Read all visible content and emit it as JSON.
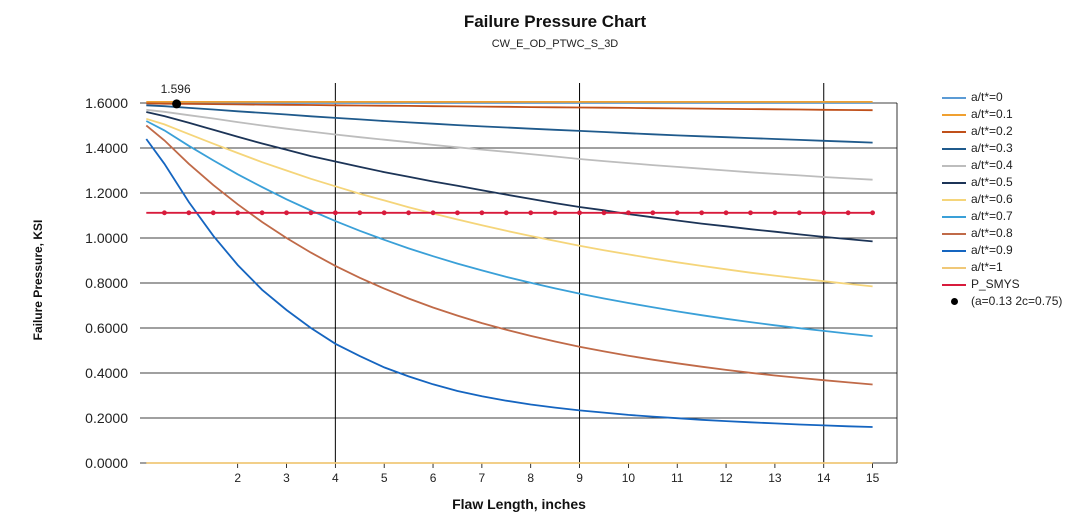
{
  "chart_data": {
    "type": "line",
    "title": "Failure Pressure Chart",
    "subtitle": "CW_E_OD_PTWC_S_3D",
    "xlabel": "Flaw Length, inches",
    "ylabel": "Failure Pressure, KSI",
    "xlim": [
      0,
      15.5
    ],
    "ylim": [
      0,
      1.6
    ],
    "x_ticks": [
      2,
      3,
      4,
      5,
      6,
      7,
      8,
      9,
      10,
      11,
      12,
      13,
      14,
      15
    ],
    "x_tick_labels": [
      "2",
      "3",
      "4",
      "5",
      "6",
      "7",
      "8",
      "9",
      "10",
      "11",
      "12",
      "13",
      "14",
      "15"
    ],
    "y_ticks": [
      0,
      0.2,
      0.4,
      0.6,
      0.8,
      1.0,
      1.2,
      1.4,
      1.6
    ],
    "y_tick_labels": [
      "0.0000",
      "0.2000",
      "0.4000",
      "0.6000",
      "0.8000",
      "1.0000",
      "1.2000",
      "1.4000",
      "1.6000"
    ],
    "major_x_gridlines": [
      4,
      9,
      14
    ],
    "grid": true,
    "legend_position": "right",
    "x": [
      0.13,
      0.5,
      1,
      1.5,
      2,
      2.5,
      3,
      3.5,
      4,
      4.5,
      5,
      5.5,
      6,
      6.5,
      7,
      7.5,
      8,
      8.5,
      9,
      9.5,
      10,
      10.5,
      11,
      11.5,
      12,
      12.5,
      13,
      13.5,
      14,
      14.5,
      15
    ],
    "series": [
      {
        "name": "a/t*=0",
        "color": "#5b9bd5",
        "values": [
          1.6,
          1.6,
          1.6,
          1.6,
          1.6,
          1.6,
          1.6,
          1.6,
          1.6,
          1.6,
          1.6,
          1.6,
          1.6,
          1.6,
          1.6,
          1.6,
          1.6,
          1.6,
          1.6,
          1.6,
          1.6,
          1.6,
          1.6,
          1.6,
          1.6,
          1.6,
          1.6,
          1.6,
          1.6,
          1.6,
          1.6
        ]
      },
      {
        "name": "a/t*=0.1",
        "color": "#f0a030",
        "values": [
          1.605,
          1.605,
          1.605,
          1.605,
          1.605,
          1.605,
          1.605,
          1.605,
          1.605,
          1.605,
          1.605,
          1.605,
          1.605,
          1.605,
          1.605,
          1.605,
          1.605,
          1.605,
          1.605,
          1.605,
          1.605,
          1.605,
          1.605,
          1.605,
          1.605,
          1.605,
          1.605,
          1.605,
          1.605,
          1.605,
          1.605
        ]
      },
      {
        "name": "a/t*=0.2",
        "color": "#c0501a",
        "values": [
          1.598,
          1.597,
          1.596,
          1.595,
          1.594,
          1.593,
          1.592,
          1.591,
          1.59,
          1.589,
          1.588,
          1.587,
          1.586,
          1.585,
          1.584,
          1.583,
          1.582,
          1.581,
          1.58,
          1.579,
          1.578,
          1.577,
          1.576,
          1.575,
          1.574,
          1.573,
          1.572,
          1.571,
          1.57,
          1.569,
          1.568
        ]
      },
      {
        "name": "a/t*=0.3",
        "color": "#1f5a8c",
        "values": [
          1.59,
          1.586,
          1.578,
          1.571,
          1.563,
          1.556,
          1.549,
          1.541,
          1.534,
          1.527,
          1.52,
          1.514,
          1.508,
          1.502,
          1.496,
          1.491,
          1.486,
          1.481,
          1.476,
          1.471,
          1.466,
          1.461,
          1.456,
          1.452,
          1.448,
          1.444,
          1.44,
          1.436,
          1.432,
          1.428,
          1.424
        ]
      },
      {
        "name": "a/t*=0.4",
        "color": "#bdbdbd",
        "values": [
          1.57,
          1.561,
          1.546,
          1.531,
          1.515,
          1.5,
          1.486,
          1.473,
          1.46,
          1.448,
          1.437,
          1.426,
          1.414,
          1.403,
          1.393,
          1.383,
          1.373,
          1.362,
          1.351,
          1.342,
          1.333,
          1.324,
          1.316,
          1.308,
          1.3,
          1.292,
          1.285,
          1.278,
          1.271,
          1.265,
          1.259
        ]
      },
      {
        "name": "a/t*=0.5",
        "color": "#1c3457",
        "values": [
          1.56,
          1.542,
          1.512,
          1.481,
          1.45,
          1.42,
          1.392,
          1.364,
          1.34,
          1.316,
          1.293,
          1.272,
          1.251,
          1.232,
          1.212,
          1.193,
          1.174,
          1.155,
          1.138,
          1.123,
          1.106,
          1.092,
          1.078,
          1.064,
          1.052,
          1.039,
          1.028,
          1.016,
          1.005,
          0.995,
          0.985
        ]
      },
      {
        "name": "a/t*=0.6",
        "color": "#f5d57a",
        "values": [
          1.53,
          1.505,
          1.462,
          1.419,
          1.378,
          1.337,
          1.3,
          1.263,
          1.23,
          1.197,
          1.167,
          1.137,
          1.109,
          1.082,
          1.057,
          1.032,
          1.009,
          0.987,
          0.966,
          0.946,
          0.927,
          0.909,
          0.892,
          0.876,
          0.861,
          0.846,
          0.833,
          0.82,
          0.808,
          0.796,
          0.785
        ]
      },
      {
        "name": "a/t*=0.7",
        "color": "#3aa0d8",
        "values": [
          1.52,
          1.478,
          1.41,
          1.345,
          1.283,
          1.226,
          1.172,
          1.122,
          1.075,
          1.032,
          0.992,
          0.954,
          0.919,
          0.886,
          0.856,
          0.827,
          0.801,
          0.776,
          0.753,
          0.731,
          0.711,
          0.692,
          0.674,
          0.657,
          0.641,
          0.626,
          0.612,
          0.599,
          0.587,
          0.575,
          0.564
        ]
      },
      {
        "name": "a/t*=0.8",
        "color": "#c06a48",
        "values": [
          1.5,
          1.434,
          1.33,
          1.235,
          1.15,
          1.071,
          1.0,
          0.935,
          0.876,
          0.823,
          0.775,
          0.731,
          0.691,
          0.655,
          0.622,
          0.592,
          0.565,
          0.54,
          0.517,
          0.496,
          0.477,
          0.459,
          0.443,
          0.428,
          0.414,
          0.401,
          0.389,
          0.378,
          0.368,
          0.358,
          0.349
        ]
      },
      {
        "name": "a/t*=0.9",
        "color": "#1565c0",
        "values": [
          1.44,
          1.33,
          1.16,
          1.01,
          0.88,
          0.77,
          0.68,
          0.6,
          0.53,
          0.475,
          0.425,
          0.385,
          0.35,
          0.32,
          0.297,
          0.277,
          0.26,
          0.246,
          0.234,
          0.224,
          0.214,
          0.206,
          0.199,
          0.192,
          0.186,
          0.181,
          0.176,
          0.171,
          0.167,
          0.163,
          0.16
        ]
      },
      {
        "name": "a/t*=1",
        "color": "#f0c878",
        "values": [
          0.0,
          0.0,
          0.0,
          0.0,
          0.0,
          0.0,
          0.0,
          0.0,
          0.0,
          0.0,
          0.0,
          0.0,
          0.0,
          0.0,
          0.0,
          0.0,
          0.0,
          0.0,
          0.0,
          0.0,
          0.0,
          0.0,
          0.0,
          0.0,
          0.0,
          0.0,
          0.0,
          0.0,
          0.0,
          0.0,
          0.0
        ]
      },
      {
        "name": "P_SMYS",
        "color": "#d81b3c",
        "markers": true,
        "values": [
          1.112,
          1.112,
          1.112,
          1.112,
          1.112,
          1.112,
          1.112,
          1.112,
          1.112,
          1.112,
          1.112,
          1.112,
          1.112,
          1.112,
          1.112,
          1.112,
          1.112,
          1.112,
          1.112,
          1.112,
          1.112,
          1.112,
          1.112,
          1.112,
          1.112,
          1.112,
          1.112,
          1.112,
          1.112,
          1.112,
          1.112
        ]
      }
    ],
    "point": {
      "name": "(a=0.13 2c=0.75)",
      "x": 0.75,
      "y": 1.596,
      "label": "1.596",
      "color": "#000000"
    }
  }
}
